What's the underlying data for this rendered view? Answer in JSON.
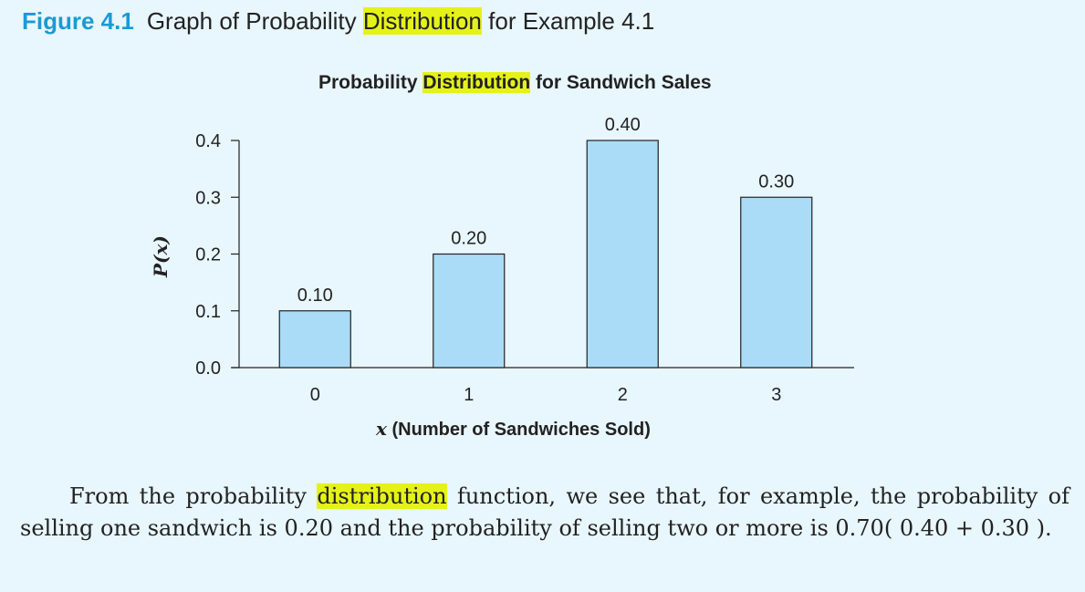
{
  "figure": {
    "number": "Figure 4.1",
    "caption_before": "Graph of Probability ",
    "caption_highlight": "Distribution",
    "caption_after": " for Example 4.1"
  },
  "colors": {
    "bar_fill": "#aadcf7",
    "highlight": "#e5f21a",
    "figure_number": "#1a9ad6",
    "background": "#e8f6fd"
  },
  "chart_data": {
    "type": "bar",
    "title_before": "Probability ",
    "title_highlight": "Distribution",
    "title_after": " for Sandwich Sales",
    "categories": [
      "0",
      "1",
      "2",
      "3"
    ],
    "values": [
      0.1,
      0.2,
      0.4,
      0.3
    ],
    "value_labels": [
      "0.10",
      "0.20",
      "0.40",
      "0.30"
    ],
    "yticks": [
      "0.0",
      "0.1",
      "0.2",
      "0.3",
      "0.4"
    ],
    "ylim": [
      0,
      0.4
    ],
    "ylabel": "P(x)",
    "xlabel_var": "x",
    "xlabel_rest": " (Number of Sandwiches Sold)",
    "grid": false
  },
  "paragraph": {
    "text_before": "From the probability ",
    "text_highlight": "distribution",
    "text_after": " function, we see that, for example, the probability of selling one sandwich is 0.20 and the probability of selling two or more is 0.70( 0.40 + 0.30 )."
  }
}
